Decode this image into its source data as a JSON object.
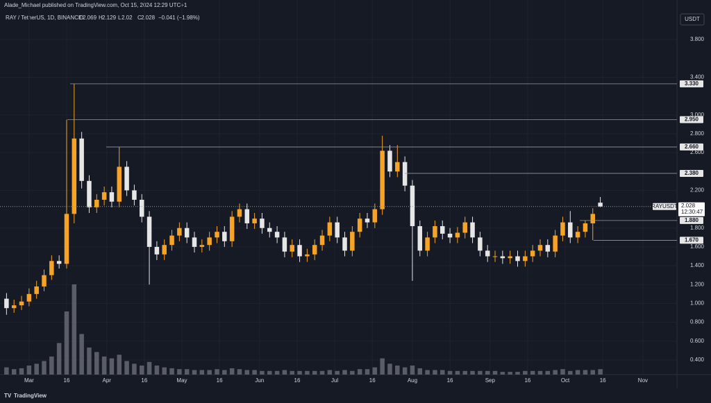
{
  "header": {
    "published": "Alade_Michael published on TradingView.com, Oct 15, 2024 12:29 UTC+1",
    "symbol": "RAY / TetherUS, 1D, BINANCE",
    "ohlc_labels": [
      "O",
      "H",
      "L",
      "C"
    ],
    "change": "−0.041 (−1.98%)",
    "unit": "USDT",
    "ticker": "RAYUSDT",
    "countdown": "12:30:47",
    "brand": "TradingView"
  },
  "chart_data": {
    "type": "candlestick",
    "x": [
      0,
      3,
      6,
      9,
      12,
      15,
      18,
      21,
      24,
      27,
      30,
      33,
      36,
      39,
      42,
      45,
      48,
      51,
      54,
      57,
      60,
      63,
      66,
      69,
      72,
      75,
      78,
      81,
      84,
      87,
      90,
      93,
      96,
      99,
      102,
      105,
      108,
      111,
      114,
      117,
      120,
      123,
      126,
      129,
      132,
      135,
      138,
      141,
      144,
      147,
      150,
      153,
      156,
      159,
      162,
      165,
      168,
      171,
      174,
      177,
      180,
      183,
      186,
      189,
      192,
      195,
      198,
      201,
      204,
      207,
      210,
      213,
      216,
      219,
      222,
      225,
      228,
      231,
      234,
      237
    ],
    "open": [
      1.05,
      0.95,
      0.98,
      1.02,
      1.1,
      1.18,
      1.3,
      1.45,
      1.42,
      1.95,
      2.75,
      2.3,
      2.02,
      2.1,
      2.18,
      2.08,
      2.45,
      2.2,
      2.1,
      1.92,
      1.6,
      1.52,
      1.62,
      1.72,
      1.8,
      1.7,
      1.6,
      1.62,
      1.7,
      1.76,
      1.66,
      1.92,
      2.0,
      1.85,
      1.9,
      1.8,
      1.76,
      1.7,
      1.55,
      1.62,
      1.5,
      1.52,
      1.62,
      1.72,
      1.86,
      1.7,
      1.56,
      1.76,
      1.9,
      1.86,
      2.0,
      2.62,
      2.4,
      2.5,
      2.25,
      1.82,
      1.56,
      1.7,
      1.82,
      1.74,
      1.7,
      1.75,
      1.86,
      1.7,
      1.56,
      1.5,
      1.5,
      1.48,
      1.5,
      1.45,
      1.5,
      1.56,
      1.62,
      1.55,
      1.72,
      1.86,
      1.7,
      1.76,
      1.85,
      2.069
    ],
    "high": [
      1.11,
      1.04,
      1.08,
      1.16,
      1.24,
      1.36,
      1.51,
      1.51,
      2.95,
      3.33,
      2.82,
      2.36,
      2.16,
      2.24,
      2.24,
      2.66,
      2.51,
      2.26,
      2.16,
      1.98,
      1.66,
      1.68,
      1.78,
      1.86,
      1.86,
      1.76,
      1.68,
      1.76,
      1.82,
      1.82,
      1.98,
      2.06,
      2.06,
      1.96,
      1.96,
      1.86,
      1.82,
      1.76,
      1.68,
      1.68,
      1.58,
      1.68,
      1.78,
      1.92,
      1.92,
      1.76,
      1.82,
      1.96,
      1.96,
      2.06,
      2.78,
      2.68,
      2.68,
      2.56,
      2.31,
      1.88,
      1.76,
      1.88,
      1.88,
      1.8,
      1.81,
      1.92,
      1.92,
      1.76,
      1.62,
      1.56,
      1.56,
      1.56,
      1.56,
      1.56,
      1.62,
      1.68,
      1.68,
      1.78,
      1.92,
      1.98,
      1.82,
      1.88,
      2.01,
      2.129
    ],
    "low": [
      0.88,
      0.9,
      0.93,
      0.97,
      1.05,
      1.13,
      1.25,
      1.37,
      1.37,
      1.85,
      2.22,
      1.96,
      1.96,
      2.04,
      2.02,
      2.02,
      2.14,
      2.04,
      1.86,
      1.2,
      1.46,
      1.46,
      1.56,
      1.66,
      1.64,
      1.54,
      1.54,
      1.56,
      1.64,
      1.6,
      1.6,
      1.86,
      1.79,
      1.79,
      1.74,
      1.7,
      1.64,
      1.49,
      1.49,
      1.44,
      1.44,
      1.46,
      1.56,
      1.66,
      1.64,
      1.5,
      1.5,
      1.7,
      1.8,
      1.8,
      1.94,
      2.34,
      2.34,
      2.19,
      1.24,
      1.5,
      1.5,
      1.64,
      1.68,
      1.64,
      1.64,
      1.69,
      1.64,
      1.5,
      1.44,
      1.44,
      1.42,
      1.42,
      1.39,
      1.39,
      1.44,
      1.5,
      1.49,
      1.49,
      1.66,
      1.64,
      1.64,
      1.7,
      1.67,
      2.02
    ],
    "close": [
      0.95,
      0.98,
      1.02,
      1.1,
      1.18,
      1.3,
      1.45,
      1.42,
      1.95,
      2.75,
      2.3,
      2.02,
      2.1,
      2.18,
      2.08,
      2.45,
      2.2,
      2.1,
      1.92,
      1.6,
      1.52,
      1.62,
      1.72,
      1.8,
      1.7,
      1.6,
      1.62,
      1.7,
      1.76,
      1.66,
      1.92,
      2.0,
      1.85,
      1.9,
      1.8,
      1.76,
      1.7,
      1.55,
      1.62,
      1.5,
      1.52,
      1.62,
      1.72,
      1.86,
      1.7,
      1.56,
      1.76,
      1.9,
      1.86,
      2.0,
      2.62,
      2.4,
      2.5,
      2.25,
      1.82,
      1.56,
      1.7,
      1.82,
      1.74,
      1.7,
      1.75,
      1.86,
      1.7,
      1.56,
      1.5,
      1.5,
      1.48,
      1.5,
      1.45,
      1.5,
      1.56,
      1.62,
      1.55,
      1.72,
      1.86,
      1.7,
      1.76,
      1.85,
      1.95,
      2.028
    ],
    "volume": [
      8,
      6,
      7,
      10,
      12,
      15,
      20,
      35,
      70,
      100,
      45,
      30,
      25,
      20,
      18,
      22,
      15,
      12,
      10,
      14,
      10,
      8,
      7,
      6,
      6,
      5,
      5,
      5,
      6,
      5,
      7,
      6,
      5,
      5,
      4,
      4,
      4,
      5,
      4,
      4,
      4,
      4,
      4,
      5,
      4,
      5,
      4,
      6,
      6,
      8,
      18,
      12,
      10,
      8,
      10,
      7,
      5,
      5,
      5,
      4,
      4,
      4,
      4,
      4,
      4,
      4,
      3,
      3,
      3,
      4,
      4,
      4,
      4,
      5,
      6,
      4,
      5,
      5,
      5,
      6
    ],
    "vlim": [
      0,
      100
    ],
    "up_color": "#f7a325",
    "down_color": "#e6e6e6",
    "volume_color": "#6b6e78",
    "xlim": [
      -2.6,
      267.6
    ],
    "ylim": [
      0.245,
      4.22
    ],
    "xticks": [
      {
        "value": 9,
        "label": "Mar"
      },
      {
        "value": 24,
        "label": "16"
      },
      {
        "value": 40,
        "label": "Apr"
      },
      {
        "value": 55,
        "label": "16"
      },
      {
        "value": 70,
        "label": "May"
      },
      {
        "value": 85,
        "label": "16"
      },
      {
        "value": 101,
        "label": "Jun"
      },
      {
        "value": 116,
        "label": "16"
      },
      {
        "value": 131,
        "label": "Jul"
      },
      {
        "value": 146,
        "label": "16"
      },
      {
        "value": 162,
        "label": "Aug"
      },
      {
        "value": 177,
        "label": "16"
      },
      {
        "value": 193,
        "label": "Sep"
      },
      {
        "value": 208,
        "label": "16"
      },
      {
        "value": 223,
        "label": "Oct"
      },
      {
        "value": 238,
        "label": "16"
      },
      {
        "value": 254,
        "label": "Nov"
      }
    ],
    "yticks": [
      {
        "value": 0.4,
        "label": "0.400"
      },
      {
        "value": 0.6,
        "label": "0.600"
      },
      {
        "value": 0.8,
        "label": "0.800"
      },
      {
        "value": 1.0,
        "label": "1.000"
      },
      {
        "value": 1.2,
        "label": "1.200"
      },
      {
        "value": 1.4,
        "label": "1.400"
      },
      {
        "value": 1.6,
        "label": "1.600"
      },
      {
        "value": 1.8,
        "label": "1.800"
      },
      {
        "value": 2.2,
        "label": "2.200"
      },
      {
        "value": 2.6,
        "label": "2.600"
      },
      {
        "value": 2.8,
        "label": "2.800"
      },
      {
        "value": 3.0,
        "label": "3.000"
      },
      {
        "value": 3.4,
        "label": "3.400"
      },
      {
        "value": 3.8,
        "label": "3.800"
      }
    ],
    "levels": [
      {
        "value": 3.33,
        "label": "3.330"
      },
      {
        "value": 2.95,
        "label": "2.950"
      },
      {
        "value": 2.66,
        "label": "2.660"
      },
      {
        "value": 2.38,
        "label": "2.380"
      },
      {
        "value": 1.88,
        "label": "1.880"
      },
      {
        "value": 1.67,
        "label": "1.670"
      }
    ]
  }
}
